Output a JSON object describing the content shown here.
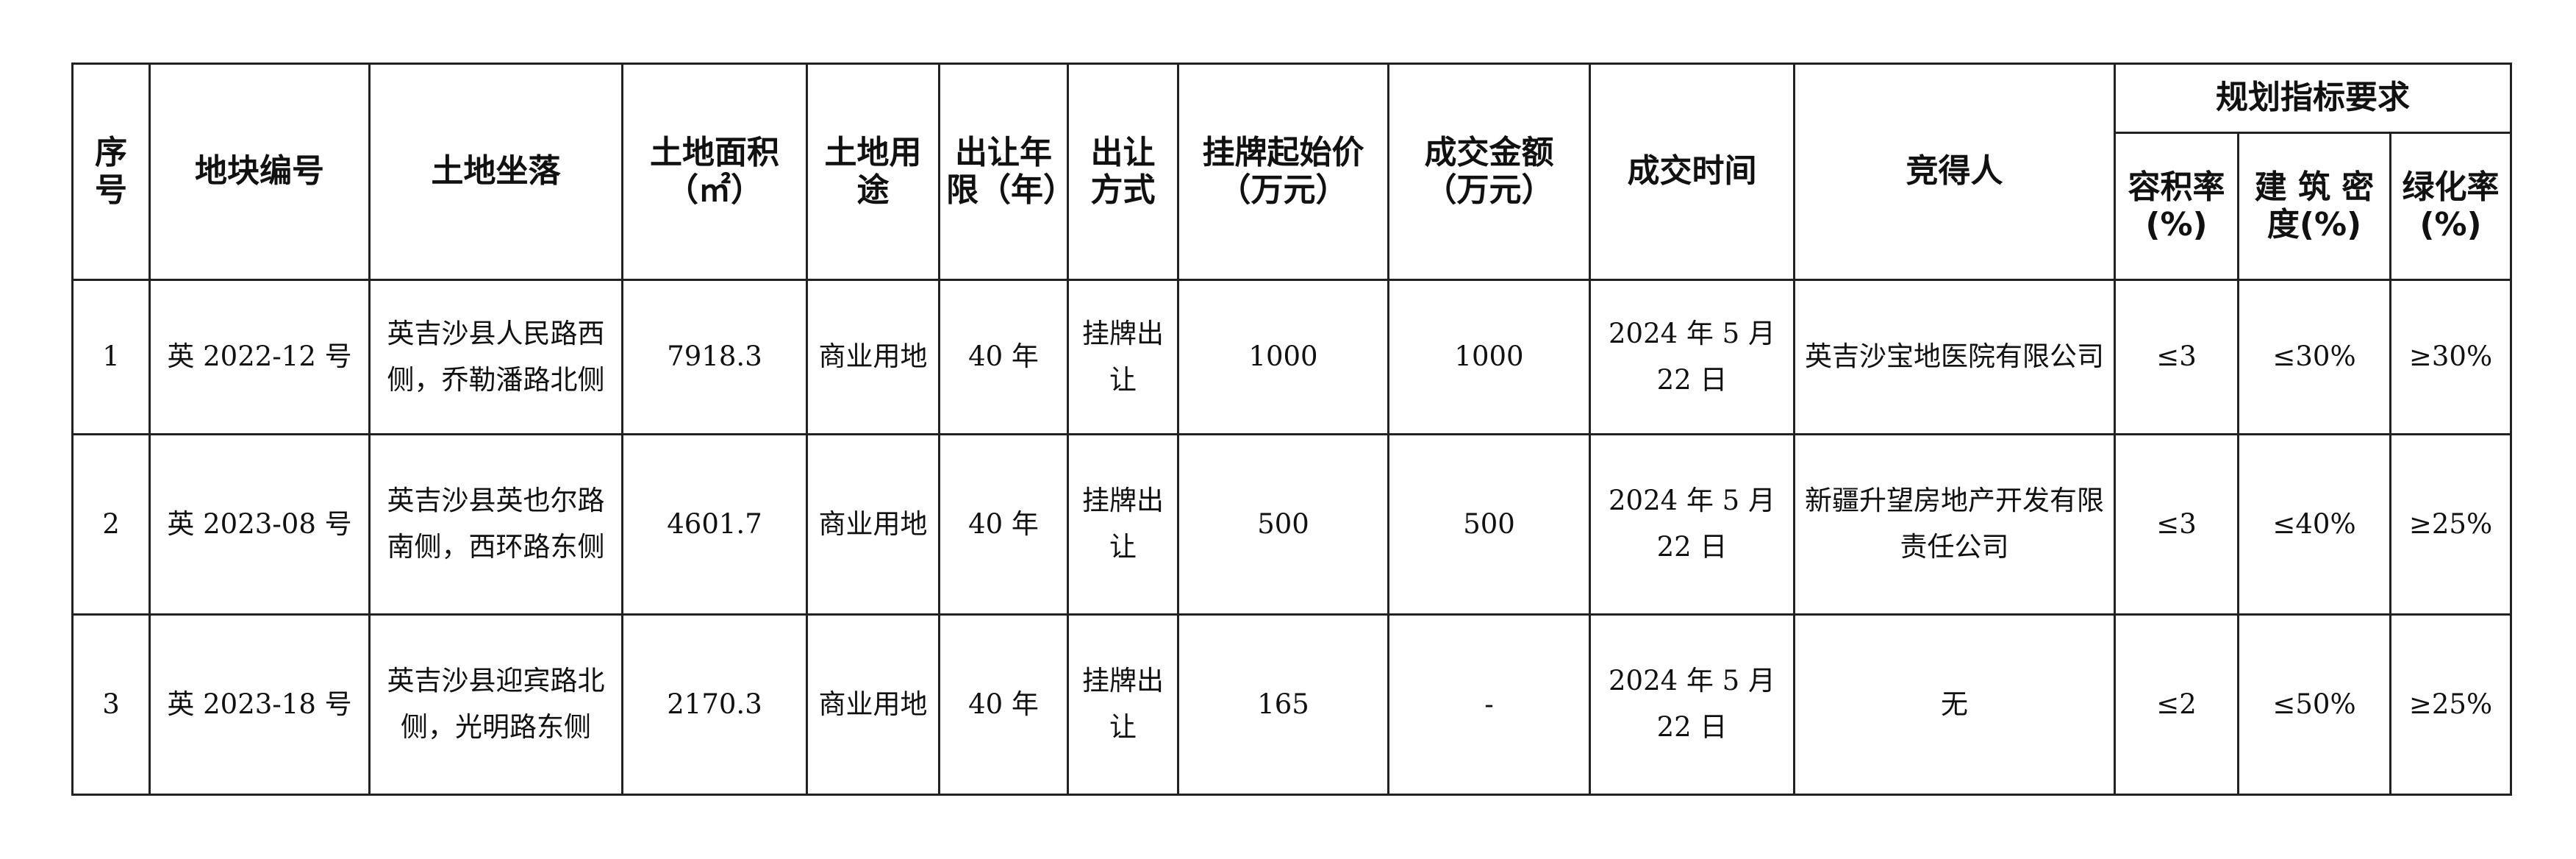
{
  "table": {
    "headers": [
      "序号",
      "地块编号",
      "土地坐落",
      "土地面积（㎡）",
      "土地用途",
      "出让年限（年）",
      "出让方式",
      "挂牌起始价（万元）",
      "成交金额（万元）",
      "成交时间",
      "竞得人"
    ],
    "group_header": "规划指标要求",
    "sub_headers": [
      "容积率(%)",
      "建 筑 密 度(%)",
      "绿化率(%)"
    ],
    "rows": [
      [
        "1",
        "英 2022-12 号",
        "英吉沙县人民路西侧，乔勒潘路北侧",
        "7918.3",
        "商业用地",
        "40 年",
        "挂牌出让",
        "1000",
        "1000",
        "2024 年 5 月 22 日",
        "英吉沙宝地医院有限公司",
        "≤3",
        "≤30%",
        "≥30%"
      ],
      [
        "2",
        "英 2023-08 号",
        "英吉沙县英也尔路南侧，西环路东侧",
        "4601.7",
        "商业用地",
        "40 年",
        "挂牌出让",
        "500",
        "500",
        "2024 年 5 月 22 日",
        "新疆升望房地产开发有限责任公司",
        "≤3",
        "≤40%",
        "≥25%"
      ],
      [
        "3",
        "英 2023-18 号",
        "英吉沙县迎宾路北侧，光明路东侧",
        "2170.3",
        "商业用地",
        "40 年",
        "挂牌出让",
        "165",
        "-",
        "2024 年 5 月 22 日",
        "无",
        "≤2",
        "≤50%",
        "≥25%"
      ]
    ]
  }
}
